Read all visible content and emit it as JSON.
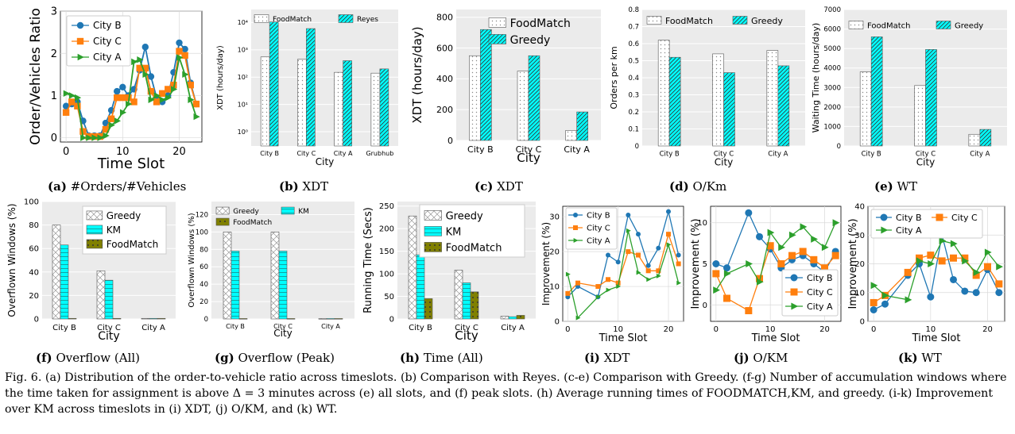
{
  "caption": "Fig. 6.  (a) Distribution of the order-to-vehicle ratio across timeslots. (b) Comparison with Reyes. (c-e) Comparison with Greedy. (f-g) Number of accumulation windows where the time taken for assignment is above Δ = 3 minutes across (e) all slots, and (f) peak slots. (h) Average running times of FOODMATCH,KM, and greedy. (i-k) Improvement over KM across timeslots in (i) XDT, (j) O/KM, and (k) WT.",
  "colors": {
    "cityB": "#1f77b4",
    "cityC": "#ff7f0e",
    "cityA": "#2ca02c",
    "cyan": "#00ffff",
    "olive": "#808000",
    "panelBg": "#ebebeb",
    "grid": "#ffffff"
  },
  "chart_data": [
    {
      "id": "a",
      "type": "line",
      "tag": "(a)",
      "caption": "#Orders/#Vehicles",
      "title": "",
      "xlabel": "Time Slot",
      "ylabel": "Order/Vehicles Ratio",
      "xlim": [
        -1,
        24
      ],
      "ylim": [
        -0.1,
        3
      ],
      "xticks": [
        0,
        10,
        20
      ],
      "yticks": [
        0,
        1,
        2,
        3
      ],
      "legend": "top-left",
      "series": [
        {
          "name": "City B",
          "marker": "circle",
          "color": "#1f77b4",
          "x": [
            0,
            1,
            2,
            3,
            4,
            5,
            6,
            7,
            8,
            9,
            10,
            11,
            12,
            13,
            14,
            15,
            16,
            17,
            18,
            19,
            20,
            21,
            22,
            23
          ],
          "y": [
            0.75,
            0.8,
            0.85,
            0.4,
            0.05,
            0.05,
            0.05,
            0.35,
            0.65,
            1.1,
            1.2,
            1.0,
            1.15,
            1.6,
            2.15,
            1.45,
            0.95,
            0.85,
            1.0,
            1.55,
            2.25,
            2.1,
            1.3,
            0.8
          ]
        },
        {
          "name": "City C",
          "marker": "square",
          "color": "#ff7f0e",
          "x": [
            0,
            1,
            2,
            3,
            4,
            5,
            6,
            7,
            8,
            9,
            10,
            11,
            12,
            13,
            14,
            15,
            16,
            17,
            18,
            19,
            20,
            21,
            22,
            23
          ],
          "y": [
            0.6,
            0.85,
            0.75,
            0.15,
            0.03,
            0.03,
            0.03,
            0.2,
            0.45,
            0.95,
            0.95,
            0.95,
            0.85,
            1.65,
            1.65,
            1.1,
            0.85,
            1.05,
            1.15,
            1.25,
            2.05,
            1.95,
            1.25,
            0.8
          ]
        },
        {
          "name": "City A",
          "marker": "triangle",
          "color": "#2ca02c",
          "x": [
            0,
            1,
            2,
            3,
            4,
            5,
            6,
            7,
            8,
            9,
            10,
            11,
            12,
            13,
            14,
            15,
            16,
            17,
            18,
            19,
            20,
            21,
            22,
            23
          ],
          "y": [
            1.05,
            1.0,
            0.95,
            0.0,
            0.0,
            0.0,
            0.0,
            0.05,
            0.3,
            0.4,
            0.6,
            0.8,
            1.8,
            1.85,
            1.5,
            0.9,
            1.0,
            0.9,
            0.95,
            1.15,
            1.9,
            1.5,
            0.9,
            0.5
          ]
        }
      ]
    },
    {
      "id": "b",
      "type": "bar",
      "tag": "(b)",
      "caption": "XDT",
      "xlabel": "City",
      "ylabel": "XDT (hours/day)",
      "scale": "log",
      "ylim": [
        0.3,
        30000
      ],
      "yticks": [
        {
          "v": 1,
          "l": "10⁰"
        },
        {
          "v": 10,
          "l": "10¹"
        },
        {
          "v": 100,
          "l": "10²"
        },
        {
          "v": 1000,
          "l": "10³"
        },
        {
          "v": 10000,
          "l": "10⁴"
        }
      ],
      "categories": [
        "City B",
        "City C",
        "City A",
        "Grubhub"
      ],
      "legend": "top",
      "series": [
        {
          "name": "FoodMatch",
          "values": [
            550,
            450,
            150,
            140
          ]
        },
        {
          "name": "Reyes",
          "values": [
            10500,
            6000,
            400,
            200
          ]
        }
      ]
    },
    {
      "id": "c",
      "type": "bar",
      "tag": "(c)",
      "caption": "XDT",
      "xlabel": "City",
      "ylabel": "XDT (hours/day)",
      "ylim": [
        0,
        850
      ],
      "yticks": [
        0,
        200,
        400,
        600,
        800
      ],
      "categories": [
        "City B",
        "City C",
        "City A"
      ],
      "legend": "top-right",
      "series": [
        {
          "name": "FoodMatch",
          "values": [
            550,
            450,
            65
          ]
        },
        {
          "name": "Greedy",
          "values": [
            720,
            550,
            185
          ]
        }
      ]
    },
    {
      "id": "d",
      "type": "bar",
      "tag": "(d)",
      "caption": "O/Km",
      "xlabel": "City",
      "ylabel": "Orders per km",
      "ylim": [
        0,
        0.8
      ],
      "yticks": [
        0,
        0.1,
        0.2,
        0.3,
        0.4,
        0.5,
        0.6,
        0.7,
        0.8
      ],
      "categories": [
        "City B",
        "City C",
        "City A"
      ],
      "legend": "top",
      "series": [
        {
          "name": "FoodMatch",
          "values": [
            0.62,
            0.54,
            0.56
          ]
        },
        {
          "name": "Greedy",
          "values": [
            0.52,
            0.43,
            0.47
          ]
        }
      ]
    },
    {
      "id": "e",
      "type": "bar",
      "tag": "(e)",
      "caption": "WT",
      "xlabel": "City",
      "ylabel": "Waiting Time (hours/day)",
      "ylim": [
        0,
        7000
      ],
      "yticks": [
        0,
        1000,
        2000,
        3000,
        4000,
        5000,
        6000,
        7000
      ],
      "categories": [
        "City B",
        "City C",
        "City A"
      ],
      "legend": "top",
      "series": [
        {
          "name": "FoodMatch",
          "values": [
            3800,
            3100,
            600
          ]
        },
        {
          "name": "Greedy",
          "values": [
            5600,
            4950,
            850
          ]
        }
      ]
    },
    {
      "id": "f",
      "type": "bar",
      "tag": "(f)",
      "caption": "Overflow (All)",
      "xlabel": "City",
      "ylabel": "Overflown Windows (%)",
      "ylim": [
        0,
        100
      ],
      "yticks": [
        0,
        20,
        40,
        60,
        80,
        100
      ],
      "categories": [
        "City B",
        "City C",
        "City A"
      ],
      "legend": "top-right",
      "series": [
        {
          "name": "Greedy",
          "values": [
            80,
            41,
            0.5
          ]
        },
        {
          "name": "KM",
          "values": [
            63,
            33,
            0.5
          ]
        },
        {
          "name": "FoodMatch",
          "values": [
            0.5,
            0.5,
            0.5
          ]
        }
      ]
    },
    {
      "id": "g",
      "type": "bar",
      "tag": "(g)",
      "caption": "Overflow (Peak)",
      "xlabel": "City",
      "ylabel": "Overflown Windows (%)",
      "ylim": [
        0,
        135
      ],
      "yticks": [
        0,
        20,
        40,
        60,
        80,
        100,
        120
      ],
      "categories": [
        "City B",
        "City C",
        "City A"
      ],
      "legend": "top",
      "series": [
        {
          "name": "Greedy",
          "values": [
            100,
            100,
            0.5
          ]
        },
        {
          "name": "KM",
          "values": [
            78,
            78,
            0.5
          ]
        },
        {
          "name": "FoodMatch",
          "values": [
            0.5,
            0.5,
            0.5
          ]
        }
      ]
    },
    {
      "id": "h",
      "type": "bar",
      "tag": "(h)",
      "caption": "Time (All)",
      "xlabel": "City",
      "ylabel": "Running Time (Secs)",
      "ylim": [
        0,
        260
      ],
      "yticks": [
        0,
        50,
        100,
        150,
        200,
        250
      ],
      "categories": [
        "City B",
        "City C",
        "City A"
      ],
      "legend": "top-right",
      "series": [
        {
          "name": "Greedy",
          "values": [
            228,
            108,
            6
          ]
        },
        {
          "name": "KM",
          "values": [
            142,
            80,
            5
          ]
        },
        {
          "name": "FoodMatch",
          "values": [
            45,
            60,
            8
          ]
        }
      ]
    },
    {
      "id": "i",
      "type": "line",
      "tag": "(i)",
      "caption": "XDT",
      "xlabel": "Time Slot",
      "ylabel": "Improvement (%)",
      "xlim": [
        -1,
        23
      ],
      "ylim": [
        0,
        33
      ],
      "xticks": [
        0,
        10,
        20
      ],
      "yticks": [
        0,
        10,
        20,
        30
      ],
      "legend": "top-left",
      "series": [
        {
          "name": "City B",
          "marker": "circle",
          "color": "#1f77b4",
          "x": [
            0,
            2,
            6,
            8,
            10,
            12,
            14,
            16,
            18,
            20,
            22
          ],
          "y": [
            7,
            10,
            7,
            19,
            17,
            30.5,
            25,
            16,
            21,
            31.5,
            19
          ]
        },
        {
          "name": "City C",
          "marker": "square",
          "color": "#ff7f0e",
          "x": [
            0,
            2,
            6,
            8,
            10,
            12,
            14,
            16,
            18,
            20,
            22
          ],
          "y": [
            8,
            11,
            10,
            12,
            11,
            20,
            19,
            14.5,
            14.5,
            25,
            16.5
          ]
        },
        {
          "name": "City A",
          "marker": "triangle",
          "color": "#2ca02c",
          "x": [
            0,
            2,
            6,
            8,
            10,
            12,
            14,
            16,
            18,
            20,
            22
          ],
          "y": [
            13.5,
            1,
            7,
            9,
            10,
            26,
            14,
            12,
            13,
            22,
            11
          ]
        }
      ]
    },
    {
      "id": "j",
      "type": "line",
      "tag": "(j)",
      "caption": "O/KM",
      "xlabel": "Time Slot",
      "ylabel": "Improvement (%)",
      "xlim": [
        -1,
        23
      ],
      "ylim": [
        -2,
        12
      ],
      "xticks": [
        0,
        10,
        20
      ],
      "yticks": [
        0,
        5,
        10
      ],
      "legend": "bottom-right",
      "series": [
        {
          "name": "City B",
          "marker": "circle",
          "color": "#1f77b4",
          "x": [
            0,
            2,
            6,
            8,
            10,
            12,
            14,
            16,
            18,
            20,
            22
          ],
          "y": [
            5,
            4.5,
            11.2,
            8.3,
            6.8,
            4.5,
            5.5,
            6,
            5,
            4,
            6.5
          ]
        },
        {
          "name": "City C",
          "marker": "square",
          "color": "#ff7f0e",
          "x": [
            0,
            2,
            6,
            8,
            10,
            12,
            14,
            16,
            18,
            20,
            22
          ],
          "y": [
            3.8,
            0.8,
            -0.7,
            3.2,
            7.2,
            5,
            6,
            6.5,
            5.5,
            4.5,
            6
          ]
        },
        {
          "name": "City A",
          "marker": "triangle",
          "color": "#2ca02c",
          "x": [
            0,
            2,
            6,
            8,
            10,
            12,
            14,
            16,
            18,
            20,
            22
          ],
          "y": [
            1.8,
            3.8,
            5,
            2.8,
            8.8,
            7,
            8.5,
            9.5,
            8,
            7,
            10
          ]
        }
      ]
    },
    {
      "id": "k",
      "type": "line",
      "tag": "(k)",
      "caption": "WT",
      "xlabel": "Time Slot",
      "ylabel": "Improvement (%)",
      "xlim": [
        -1,
        23
      ],
      "ylim": [
        0,
        40
      ],
      "xticks": [
        0,
        10,
        20
      ],
      "yticks": [
        0,
        10,
        20,
        30,
        40
      ],
      "legend": "top-left",
      "series": [
        {
          "name": "City B",
          "marker": "circle",
          "color": "#1f77b4",
          "x": [
            0,
            2,
            6,
            8,
            10,
            12,
            14,
            16,
            18,
            20,
            22
          ],
          "y": [
            4,
            6,
            16,
            20,
            8.5,
            30,
            14.5,
            10.5,
            10,
            18,
            10
          ]
        },
        {
          "name": "City C",
          "marker": "square",
          "color": "#ff7f0e",
          "x": [
            0,
            2,
            6,
            8,
            10,
            12,
            14,
            16,
            18,
            20,
            22
          ],
          "y": [
            6.5,
            9,
            17,
            22,
            23,
            21,
            22,
            22,
            16,
            19,
            13
          ]
        },
        {
          "name": "City A",
          "marker": "triangle",
          "color": "#2ca02c",
          "x": [
            0,
            2,
            6,
            8,
            10,
            12,
            14,
            16,
            18,
            20,
            22
          ],
          "y": [
            12.5,
            9,
            7.5,
            21,
            20,
            28,
            27,
            21,
            17,
            24,
            19
          ]
        }
      ]
    }
  ]
}
